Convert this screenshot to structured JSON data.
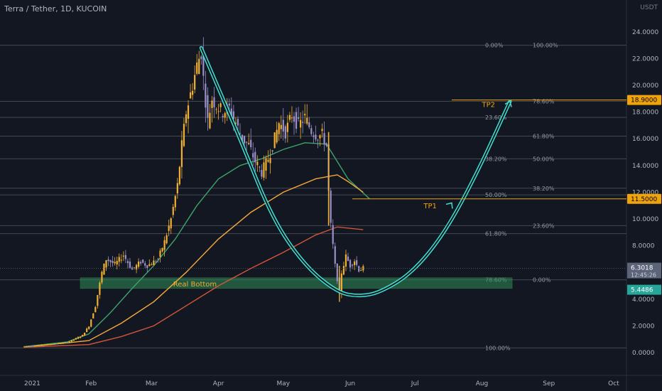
{
  "header": {
    "title": "Terra / Tether, 1D, KUCOIN"
  },
  "unit_label": "USDT",
  "colors": {
    "background": "#131722",
    "bull": "#f0b030",
    "bear": "#9a8fc8",
    "sma_green": "#3da36a",
    "sma_orange": "#f7a93c",
    "sma_red": "#d2563a",
    "curve": "#40e0d0",
    "bottom_zone": "#2e8b57",
    "grid": "#4a4e5a",
    "tp_line": "#f0a30a",
    "price_tag_current": "#5b6478",
    "price_tag_bottom": "#26a69a"
  },
  "chart_data": {
    "type": "candlestick",
    "title": "Terra / Tether, 1D, KUCOIN",
    "ylim": [
      0,
      24
    ],
    "y_ticks": [
      0,
      2,
      4,
      6,
      8,
      10,
      12,
      14,
      16,
      18,
      20,
      22,
      24
    ],
    "y_tick_labels": [
      "0.0000",
      "2.0000",
      "4.0000",
      "6.0000",
      "8.0000",
      "10.0000",
      "12.0000",
      "14.0000",
      "16.0000",
      "18.0000",
      "20.0000",
      "22.0000",
      "24.0000"
    ],
    "x_labels": [
      "2021",
      "Feb",
      "Mar",
      "Apr",
      "May",
      "Jun",
      "Jul",
      "Aug",
      "Sep",
      "Oct"
    ],
    "x_label_days": [
      0,
      31,
      59,
      90,
      120,
      151,
      181,
      212,
      243,
      273
    ],
    "x_domain_days": [
      0,
      286
    ],
    "price_series": [
      [
        0,
        0.45
      ],
      [
        10,
        0.6
      ],
      [
        20,
        0.75
      ],
      [
        27,
        1.3
      ],
      [
        30,
        2.0
      ],
      [
        33,
        3.5
      ],
      [
        36,
        6.0
      ],
      [
        38,
        7.0
      ],
      [
        42,
        6.6
      ],
      [
        46,
        7.3
      ],
      [
        50,
        6.2
      ],
      [
        54,
        6.8
      ],
      [
        57,
        6.5
      ],
      [
        62,
        7.0
      ],
      [
        65,
        8.3
      ],
      [
        68,
        10.0
      ],
      [
        71,
        12.5
      ],
      [
        73,
        15.5
      ],
      [
        75,
        18.0
      ],
      [
        78,
        20.0
      ],
      [
        80,
        21.5
      ],
      [
        82,
        22.5
      ],
      [
        83,
        20.5
      ],
      [
        85,
        17.3
      ],
      [
        87,
        19.0
      ],
      [
        89,
        18.5
      ],
      [
        92,
        18.0
      ],
      [
        95,
        18.3
      ],
      [
        98,
        17.2
      ],
      [
        101,
        16.0
      ],
      [
        104,
        15.5
      ],
      [
        107,
        14.3
      ],
      [
        110,
        13.5
      ],
      [
        113,
        14.5
      ],
      [
        116,
        16.0
      ],
      [
        118,
        17.2
      ],
      [
        121,
        16.5
      ],
      [
        124,
        17.8
      ],
      [
        127,
        17.0
      ],
      [
        130,
        17.6
      ],
      [
        133,
        16.6
      ],
      [
        136,
        16.2
      ],
      [
        138,
        16.3
      ],
      [
        140,
        15.5
      ],
      [
        141,
        12.0
      ],
      [
        142,
        9.5
      ],
      [
        143,
        8.0
      ],
      [
        144,
        6.5
      ],
      [
        145,
        5.5
      ],
      [
        146,
        4.3
      ],
      [
        147,
        6.0
      ],
      [
        149,
        7.2
      ],
      [
        151,
        6.5
      ],
      [
        153,
        6.9
      ],
      [
        155,
        6.2
      ],
      [
        157,
        6.3
      ]
    ],
    "moving_averages": [
      {
        "color_key": "sma_green",
        "points": [
          [
            0,
            0.45
          ],
          [
            20,
            0.8
          ],
          [
            30,
            1.4
          ],
          [
            40,
            3.0
          ],
          [
            50,
            4.8
          ],
          [
            60,
            6.5
          ],
          [
            70,
            8.5
          ],
          [
            80,
            11.0
          ],
          [
            90,
            13.0
          ],
          [
            100,
            14.0
          ],
          [
            110,
            14.5
          ],
          [
            120,
            15.2
          ],
          [
            130,
            15.7
          ],
          [
            140,
            15.6
          ],
          [
            150,
            13.0
          ],
          [
            160,
            11.5
          ]
        ]
      },
      {
        "color_key": "sma_orange",
        "points": [
          [
            0,
            0.4
          ],
          [
            30,
            0.9
          ],
          [
            45,
            2.2
          ],
          [
            60,
            3.8
          ],
          [
            75,
            6.0
          ],
          [
            90,
            8.5
          ],
          [
            105,
            10.5
          ],
          [
            120,
            12.0
          ],
          [
            135,
            13.0
          ],
          [
            145,
            13.3
          ],
          [
            150,
            12.8
          ],
          [
            157,
            12.0
          ]
        ]
      },
      {
        "color_key": "sma_red",
        "points": [
          [
            0,
            0.4
          ],
          [
            30,
            0.6
          ],
          [
            45,
            1.2
          ],
          [
            60,
            2.0
          ],
          [
            75,
            3.5
          ],
          [
            90,
            5.0
          ],
          [
            105,
            6.3
          ],
          [
            120,
            7.5
          ],
          [
            135,
            8.8
          ],
          [
            145,
            9.4
          ],
          [
            157,
            9.2
          ]
        ]
      }
    ],
    "fib_lines": [
      {
        "value": 23.0,
        "left_label": "0.00%",
        "right_label": "100.00%"
      },
      {
        "value": 18.8,
        "left_label": "",
        "right_label": "78.60%"
      },
      {
        "value": 17.6,
        "left_label": "23.60%",
        "right_label": ""
      },
      {
        "value": 16.2,
        "left_label": "",
        "right_label": "61.80%"
      },
      {
        "value": 14.5,
        "left_label": "38.20%",
        "right_label": "50.00%"
      },
      {
        "value": 12.3,
        "left_label": "",
        "right_label": "38.20%"
      },
      {
        "value": 11.8,
        "left_label": "50.00%",
        "right_label": ""
      },
      {
        "value": 9.5,
        "left_label": "",
        "right_label": "23.60%"
      },
      {
        "value": 8.9,
        "left_label": "61.80%",
        "right_label": ""
      },
      {
        "value": 5.4486,
        "left_label": "78.60%",
        "right_label": "0.00%"
      },
      {
        "value": 0.35,
        "left_label": "100.00%",
        "right_label": ""
      }
    ],
    "annotations": {
      "tp2": {
        "label": "TP2",
        "value": 18.9,
        "price_label": "18.9000"
      },
      "tp1": {
        "label": "TP1",
        "value": 11.5,
        "price_label": "11.5000"
      },
      "real_bottom": {
        "label": "Real Bottom",
        "low": 4.8,
        "high": 5.6
      },
      "current_price": {
        "label": "6.3018",
        "countdown": "12:45:26",
        "value": 6.3018
      },
      "bottom_price": {
        "label": "5.4486",
        "value": 5.4486
      }
    },
    "projection_curve": [
      [
        82,
        22.8
      ],
      [
        100,
        16.0
      ],
      [
        115,
        10.0
      ],
      [
        130,
        6.5
      ],
      [
        145,
        4.5
      ],
      [
        155,
        4.2
      ],
      [
        165,
        4.5
      ],
      [
        180,
        6.0
      ],
      [
        195,
        9.0
      ],
      [
        210,
        13.5
      ],
      [
        225,
        18.8
      ]
    ]
  }
}
